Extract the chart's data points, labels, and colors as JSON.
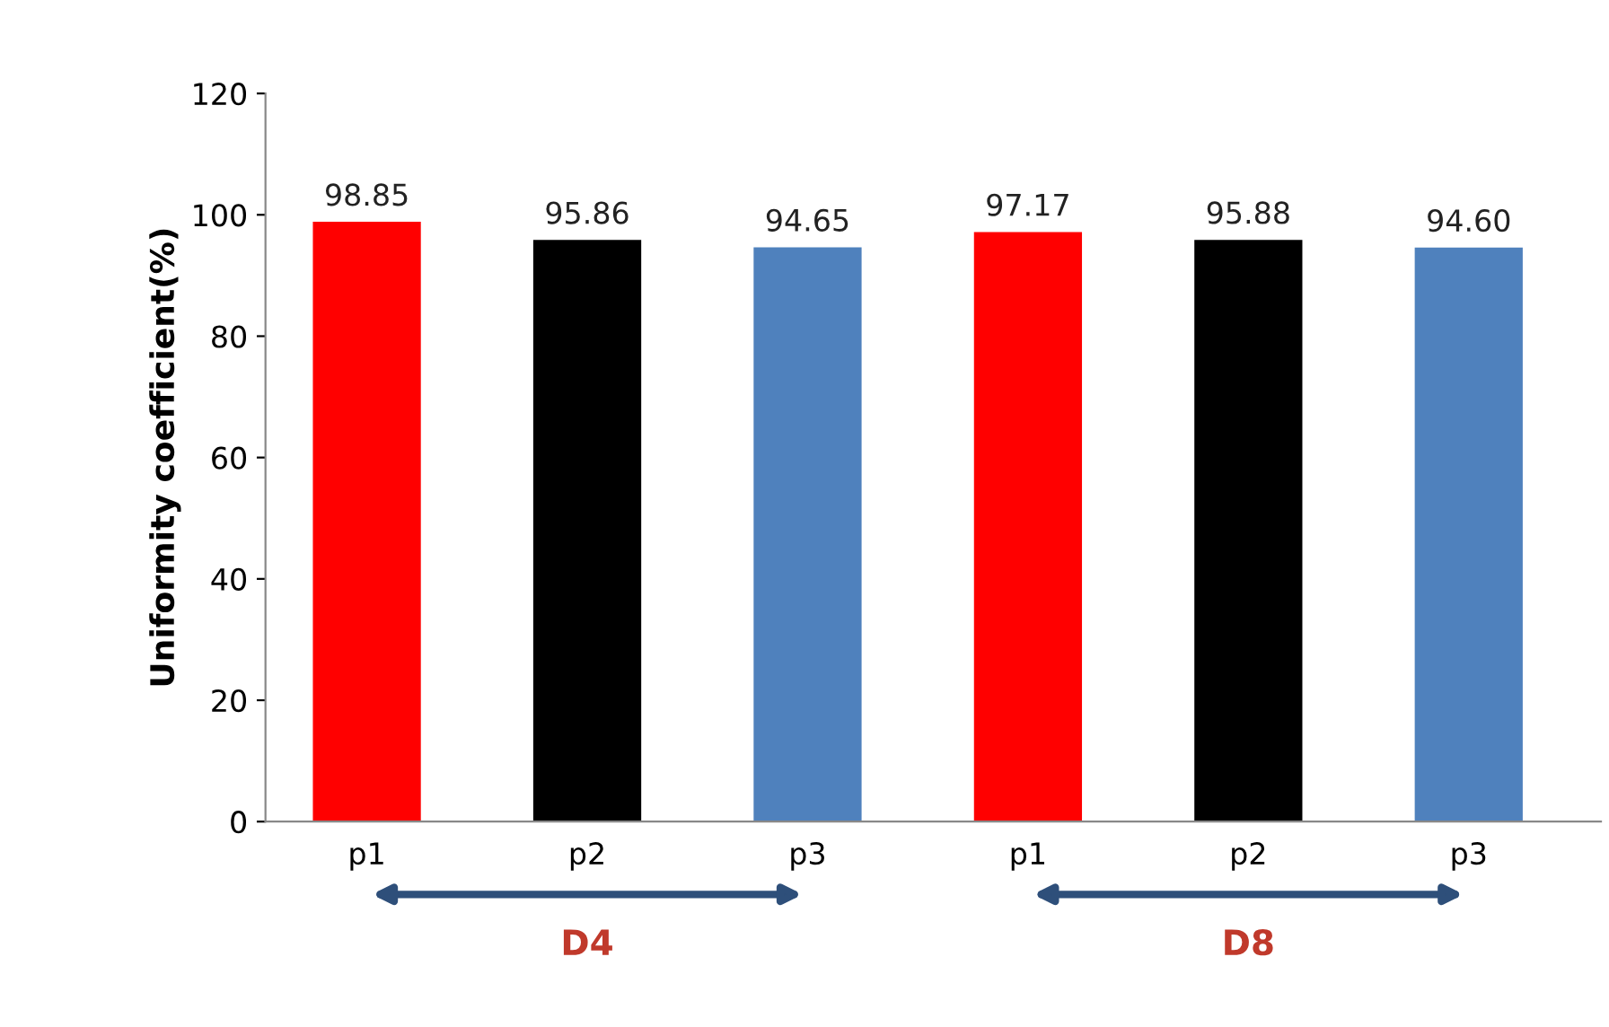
{
  "chart_data": {
    "type": "bar",
    "ylabel": "Uniformity coefficient(%)",
    "categories": [
      "p1",
      "p2",
      "p3",
      "p1",
      "p2",
      "p3"
    ],
    "values": [
      98.85,
      95.86,
      94.65,
      97.17,
      95.88,
      94.6
    ],
    "colors": [
      "#ff0000",
      "#000000",
      "#4f81bd",
      "#ff0000",
      "#000000",
      "#4f81bd"
    ],
    "value_labels": [
      "98.85",
      "95.86",
      "94.65",
      "97.17",
      "95.88",
      "94.60"
    ],
    "annotations": [
      "D4",
      "D8"
    ],
    "ylim": [
      0,
      120
    ],
    "yticks": [
      0,
      20,
      40,
      60,
      80,
      100,
      120
    ],
    "grid": false
  }
}
